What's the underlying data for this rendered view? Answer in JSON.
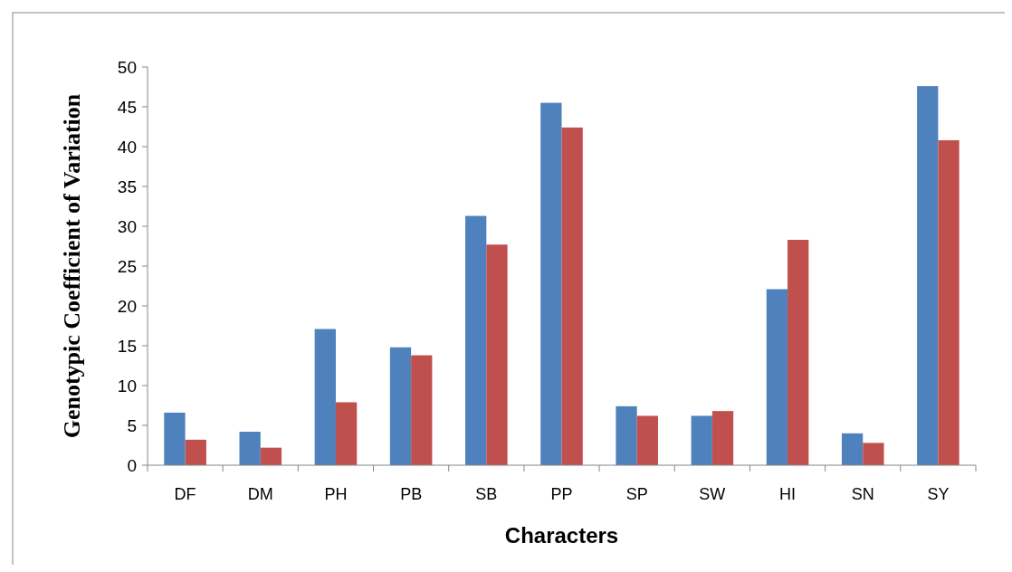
{
  "chart_data": {
    "type": "bar",
    "xlabel": "Characters",
    "ylabel": "Genotypic Coefficient of Variation",
    "categories": [
      "DF",
      "DM",
      "PH",
      "PB",
      "SB",
      "PP",
      "SP",
      "SW",
      "HI",
      "SN",
      "SY"
    ],
    "series": [
      {
        "color": "#4f81bd",
        "values": [
          6.6,
          4.2,
          17.1,
          14.8,
          31.3,
          45.5,
          7.4,
          6.2,
          22.1,
          4.0,
          47.6
        ]
      },
      {
        "color": "#c0504d",
        "values": [
          3.2,
          2.2,
          7.9,
          13.8,
          27.7,
          42.4,
          6.2,
          6.8,
          28.3,
          2.8,
          40.8
        ]
      }
    ],
    "ylim": [
      0,
      50
    ],
    "yticks": [
      0,
      5,
      10,
      15,
      20,
      25,
      30,
      35,
      40,
      45,
      50
    ],
    "grid": false
  }
}
